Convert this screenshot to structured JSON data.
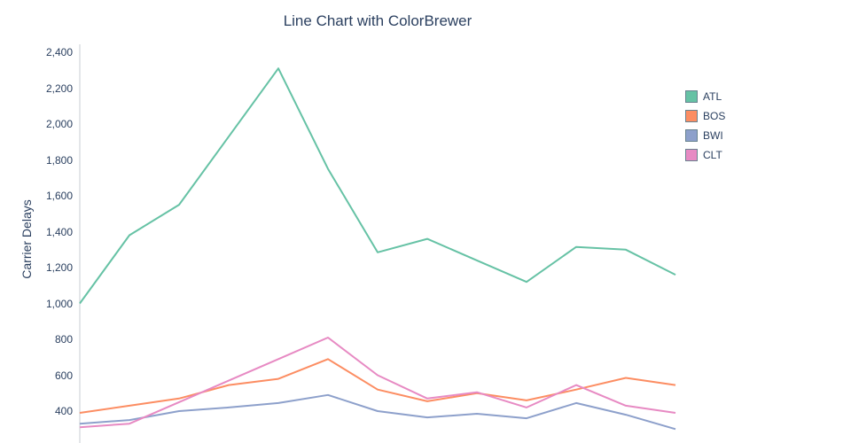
{
  "chart_data": {
    "type": "line",
    "title": "Line Chart with ColorBrewer",
    "xlabel": "",
    "ylabel": "Carrier Delays",
    "grid": false,
    "legend_position": "right",
    "ylim_visible": [
      400,
      2400
    ],
    "x": [
      1,
      2,
      3,
      4,
      5,
      6,
      7,
      8,
      9,
      10,
      11,
      12,
      13
    ],
    "yticks": [
      400,
      600,
      800,
      1000,
      1200,
      1400,
      1600,
      1800,
      2000,
      2200,
      2400
    ],
    "ytick_labels": [
      "400",
      "600",
      "800",
      "1,000",
      "1,200",
      "1,400",
      "1,600",
      "1,800",
      "2,000",
      "2,200",
      "2,400"
    ],
    "series": [
      {
        "name": "ATL",
        "color": "#66c2a5",
        "values": [
          1000,
          1380,
          1550,
          1930,
          2310,
          1750,
          1285,
          1360,
          1240,
          1120,
          1315,
          1300,
          1160
        ]
      },
      {
        "name": "BOS",
        "color": "#fc8d62",
        "values": [
          390,
          430,
          470,
          545,
          580,
          690,
          520,
          455,
          500,
          460,
          520,
          585,
          545
        ]
      },
      {
        "name": "BWI",
        "color": "#8da0cb",
        "values": [
          330,
          350,
          400,
          420,
          445,
          490,
          400,
          365,
          385,
          360,
          445,
          380,
          300
        ]
      },
      {
        "name": "CLT",
        "color": "#e78ac3",
        "values": [
          310,
          330,
          450,
          570,
          690,
          810,
          600,
          470,
          505,
          420,
          545,
          430,
          390
        ]
      }
    ]
  }
}
